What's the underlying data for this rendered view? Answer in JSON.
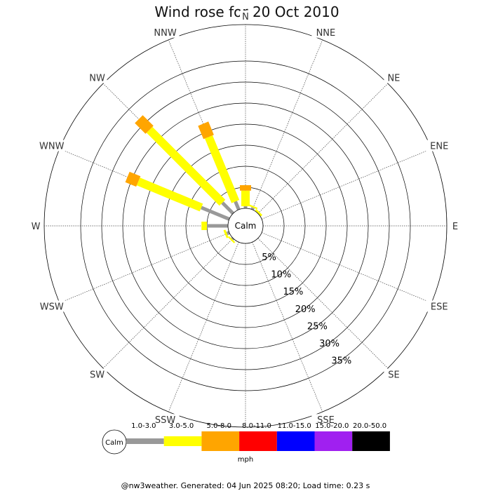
{
  "chart_data": {
    "type": "wind-rose",
    "title": "Wind rose for 20 Oct 2010",
    "directions": [
      "N",
      "NNE",
      "NE",
      "ENE",
      "E",
      "ESE",
      "SE",
      "SSE",
      "S",
      "SSW",
      "SW",
      "WSW",
      "W",
      "WNW",
      "NW",
      "NNW"
    ],
    "rings_percent": [
      5,
      10,
      15,
      20,
      25,
      30,
      35
    ],
    "ring_labels": [
      "5%",
      "10%",
      "15%",
      "20%",
      "25%",
      "30%",
      "35%"
    ],
    "calm_label": "Calm",
    "units": "mph",
    "speed_bins": [
      {
        "label": "1.0-3.0",
        "color": "#999999"
      },
      {
        "label": "3.0-5.0",
        "color": "#ffff00"
      },
      {
        "label": "5.0-8.0",
        "color": "#ffa500"
      },
      {
        "label": "8.0-11.0",
        "color": "#ff0000"
      },
      {
        "label": "11.0-15.0",
        "color": "#0000ff"
      },
      {
        "label": "15.0-20.0",
        "color": "#a020f0"
      },
      {
        "label": "20.0-50.0",
        "color": "#000000"
      }
    ],
    "series": [
      {
        "direction": "N",
        "values": [
          0.5,
          3.7,
          1.3,
          0,
          0,
          0,
          0
        ]
      },
      {
        "direction": "NNE",
        "values": [
          0.5,
          0.4,
          0,
          0,
          0,
          0,
          0
        ]
      },
      {
        "direction": "NE",
        "values": [
          0,
          0.5,
          0,
          0,
          0,
          0,
          0
        ]
      },
      {
        "direction": "W",
        "values": [
          5,
          1.3,
          0,
          0,
          0,
          0,
          0
        ]
      },
      {
        "direction": "WNW",
        "values": [
          7.2,
          16.2,
          2.8,
          0,
          0,
          0,
          0
        ]
      },
      {
        "direction": "NW",
        "values": [
          3.6,
          24.5,
          3.6,
          0,
          0,
          0,
          0
        ]
      },
      {
        "direction": "NNW",
        "values": [
          2.1,
          16.6,
          3.4,
          0,
          0,
          0,
          0
        ]
      },
      {
        "direction": "WSW",
        "values": [
          0.6,
          0.5,
          0,
          0,
          0,
          0,
          0
        ]
      },
      {
        "direction": "SW",
        "values": [
          0.3,
          0.4,
          0,
          0,
          0,
          0,
          0
        ]
      }
    ]
  },
  "legend": {
    "calm_label": "Calm",
    "units_label": "mph"
  },
  "footer": "@nw3weather. Generated: 04 Jun 2025 08:20; Load time: 0.23 s"
}
